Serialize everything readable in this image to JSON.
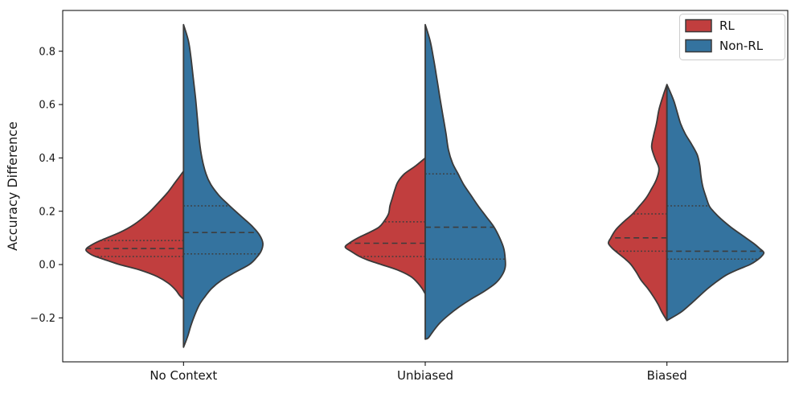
{
  "figure": {
    "background": "#ffffff",
    "axis": {
      "ylabel": "Accuracy Difference",
      "ytick_labels": [
        "−0.2",
        "0.0",
        "0.2",
        "0.4",
        "0.6",
        "0.8"
      ],
      "spine_color": "#000000"
    },
    "legend": {
      "background": "#ffffff",
      "border_color": "#cccccc",
      "entries": [
        {
          "label": "RL",
          "color": "#c13e3e"
        },
        {
          "label": "Non-RL",
          "color": "#34739f"
        }
      ]
    }
  },
  "chart_data": {
    "type": "violin",
    "variant": "split-violin",
    "title": "",
    "xlabel": "",
    "ylabel": "Accuracy Difference",
    "categories": [
      "No Context",
      "Unbiased",
      "Biased"
    ],
    "yticks": [
      -0.2,
      0.0,
      0.2,
      0.4,
      0.6,
      0.8
    ],
    "ylim": [
      -0.365,
      0.953
    ],
    "grid": false,
    "legend_position": "upper right",
    "inner": "quartiles",
    "edge_color": "#3a3a3a",
    "quartile_line_color": "#3d3d3d",
    "series": [
      {
        "name": "RL",
        "side": "left",
        "color": "#c13e3e",
        "groups": [
          {
            "category": "No Context",
            "min": -0.13,
            "q1": 0.03,
            "median": 0.06,
            "q3": 0.09,
            "max": 0.35,
            "profile": [
              [
                0.35,
                0
              ],
              [
                0.31,
                0.033
              ],
              [
                0.27,
                0.066
              ],
              [
                0.23,
                0.106
              ],
              [
                0.19,
                0.149
              ],
              [
                0.15,
                0.205
              ],
              [
                0.12,
                0.265
              ],
              [
                0.09,
                0.344
              ],
              [
                0.07,
                0.387
              ],
              [
                0.055,
                0.404
              ],
              [
                0.04,
                0.387
              ],
              [
                0.03,
                0.364
              ],
              [
                0.015,
                0.315
              ],
              [
                0.0,
                0.265
              ],
              [
                -0.02,
                0.182
              ],
              [
                -0.045,
                0.109
              ],
              [
                -0.07,
                0.063
              ],
              [
                -0.095,
                0.033
              ],
              [
                -0.115,
                0.017
              ],
              [
                -0.13,
                0
              ]
            ]
          },
          {
            "category": "Unbiased",
            "min": -0.11,
            "q1": 0.03,
            "median": 0.08,
            "q3": 0.16,
            "max": 0.4,
            "profile": [
              [
                0.4,
                0
              ],
              [
                0.37,
                0.04
              ],
              [
                0.34,
                0.086
              ],
              [
                0.31,
                0.113
              ],
              [
                0.28,
                0.126
              ],
              [
                0.25,
                0.136
              ],
              [
                0.22,
                0.146
              ],
              [
                0.19,
                0.152
              ],
              [
                0.16,
                0.172
              ],
              [
                0.14,
                0.192
              ],
              [
                0.12,
                0.232
              ],
              [
                0.1,
                0.278
              ],
              [
                0.08,
                0.315
              ],
              [
                0.065,
                0.331
              ],
              [
                0.05,
                0.308
              ],
              [
                0.03,
                0.272
              ],
              [
                0.015,
                0.232
              ],
              [
                0.0,
                0.182
              ],
              [
                -0.02,
                0.116
              ],
              [
                -0.045,
                0.06
              ],
              [
                -0.07,
                0.03
              ],
              [
                -0.09,
                0.013
              ],
              [
                -0.11,
                0
              ]
            ]
          },
          {
            "category": "Biased",
            "min": -0.21,
            "q1": 0.05,
            "median": 0.1,
            "q3": 0.19,
            "max": 0.675,
            "profile": [
              [
                0.675,
                0
              ],
              [
                0.63,
                0.017
              ],
              [
                0.58,
                0.033
              ],
              [
                0.53,
                0.043
              ],
              [
                0.48,
                0.056
              ],
              [
                0.44,
                0.063
              ],
              [
                0.4,
                0.05
              ],
              [
                0.36,
                0.033
              ],
              [
                0.32,
                0.043
              ],
              [
                0.28,
                0.066
              ],
              [
                0.25,
                0.086
              ],
              [
                0.22,
                0.113
              ],
              [
                0.19,
                0.142
              ],
              [
                0.16,
                0.179
              ],
              [
                0.13,
                0.212
              ],
              [
                0.1,
                0.232
              ],
              [
                0.08,
                0.242
              ],
              [
                0.06,
                0.225
              ],
              [
                0.04,
                0.199
              ],
              [
                0.02,
                0.172
              ],
              [
                0.0,
                0.149
              ],
              [
                -0.03,
                0.126
              ],
              [
                -0.06,
                0.106
              ],
              [
                -0.09,
                0.079
              ],
              [
                -0.12,
                0.056
              ],
              [
                -0.15,
                0.036
              ],
              [
                -0.18,
                0.02
              ],
              [
                -0.21,
                0
              ]
            ]
          }
        ]
      },
      {
        "name": "Non-RL",
        "side": "right",
        "color": "#34739f",
        "groups": [
          {
            "category": "No Context",
            "min": -0.31,
            "q1": 0.04,
            "median": 0.12,
            "q3": 0.22,
            "max": 0.9,
            "profile": [
              [
                0.9,
                0
              ],
              [
                0.84,
                0.02
              ],
              [
                0.78,
                0.03
              ],
              [
                0.7,
                0.04
              ],
              [
                0.62,
                0.05
              ],
              [
                0.54,
                0.058
              ],
              [
                0.46,
                0.066
              ],
              [
                0.4,
                0.076
              ],
              [
                0.34,
                0.093
              ],
              [
                0.3,
                0.113
              ],
              [
                0.26,
                0.146
              ],
              [
                0.23,
                0.179
              ],
              [
                0.2,
                0.215
              ],
              [
                0.17,
                0.252
              ],
              [
                0.14,
                0.288
              ],
              [
                0.11,
                0.315
              ],
              [
                0.08,
                0.328
              ],
              [
                0.05,
                0.321
              ],
              [
                0.025,
                0.301
              ],
              [
                0.0,
                0.272
              ],
              [
                -0.03,
                0.212
              ],
              [
                -0.06,
                0.156
              ],
              [
                -0.09,
                0.116
              ],
              [
                -0.12,
                0.089
              ],
              [
                -0.15,
                0.066
              ],
              [
                -0.19,
                0.046
              ],
              [
                -0.23,
                0.03
              ],
              [
                -0.27,
                0.017
              ],
              [
                -0.31,
                0
              ]
            ]
          },
          {
            "category": "Unbiased",
            "min": -0.28,
            "q1": 0.02,
            "median": 0.14,
            "q3": 0.34,
            "max": 0.9,
            "profile": [
              [
                0.9,
                0
              ],
              [
                0.84,
                0.02
              ],
              [
                0.78,
                0.033
              ],
              [
                0.71,
                0.046
              ],
              [
                0.63,
                0.06
              ],
              [
                0.56,
                0.073
              ],
              [
                0.49,
                0.086
              ],
              [
                0.43,
                0.096
              ],
              [
                0.38,
                0.113
              ],
              [
                0.34,
                0.136
              ],
              [
                0.3,
                0.159
              ],
              [
                0.26,
                0.189
              ],
              [
                0.22,
                0.219
              ],
              [
                0.18,
                0.252
              ],
              [
                0.14,
                0.285
              ],
              [
                0.1,
                0.308
              ],
              [
                0.06,
                0.325
              ],
              [
                0.02,
                0.331
              ],
              [
                -0.01,
                0.331
              ],
              [
                -0.04,
                0.318
              ],
              [
                -0.07,
                0.291
              ],
              [
                -0.1,
                0.245
              ],
              [
                -0.13,
                0.189
              ],
              [
                -0.16,
                0.139
              ],
              [
                -0.19,
                0.096
              ],
              [
                -0.22,
                0.06
              ],
              [
                -0.25,
                0.033
              ],
              [
                -0.275,
                0.013
              ],
              [
                -0.28,
                0
              ]
            ]
          },
          {
            "category": "Biased",
            "min": -0.21,
            "q1": 0.02,
            "median": 0.05,
            "q3": 0.22,
            "max": 0.675,
            "profile": [
              [
                0.675,
                0
              ],
              [
                0.64,
                0.017
              ],
              [
                0.61,
                0.03
              ],
              [
                0.57,
                0.043
              ],
              [
                0.53,
                0.056
              ],
              [
                0.49,
                0.076
              ],
              [
                0.45,
                0.103
              ],
              [
                0.41,
                0.126
              ],
              [
                0.37,
                0.136
              ],
              [
                0.33,
                0.141
              ],
              [
                0.29,
                0.149
              ],
              [
                0.25,
                0.163
              ],
              [
                0.22,
                0.175
              ],
              [
                0.2,
                0.192
              ],
              [
                0.17,
                0.225
              ],
              [
                0.14,
                0.265
              ],
              [
                0.11,
                0.311
              ],
              [
                0.08,
                0.358
              ],
              [
                0.06,
                0.384
              ],
              [
                0.045,
                0.401
              ],
              [
                0.03,
                0.391
              ],
              [
                0.015,
                0.371
              ],
              [
                0.0,
                0.344
              ],
              [
                -0.02,
                0.291
              ],
              [
                -0.04,
                0.245
              ],
              [
                -0.06,
                0.212
              ],
              [
                -0.09,
                0.169
              ],
              [
                -0.12,
                0.132
              ],
              [
                -0.15,
                0.096
              ],
              [
                -0.18,
                0.056
              ],
              [
                -0.21,
                0
              ]
            ]
          }
        ]
      }
    ]
  }
}
